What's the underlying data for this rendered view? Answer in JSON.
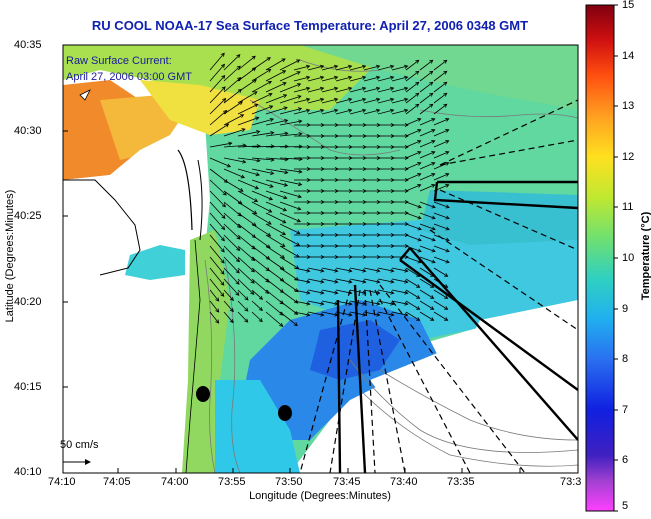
{
  "title": "RU COOL  NOAA-17  Sea Surface Temperature:  April 27, 2006 0348 GMT",
  "legend": {
    "line1": "Raw Surface Current:",
    "line2": "April 27, 2006 03:00 GMT"
  },
  "scale_label": "50 cm/s",
  "axes": {
    "xlabel": "Longitude (Degrees:Minutes)",
    "ylabel": "Latitude (Degrees:Minutes)",
    "x_ticks": [
      "74:10",
      "74:05",
      "74:00",
      "73:55",
      "73:50",
      "73:45",
      "73:40",
      "73:35",
      "73:3"
    ],
    "y_ticks": [
      "40:35",
      "40:30",
      "40:25",
      "40:20",
      "40:15",
      "40:10"
    ]
  },
  "colorbar": {
    "label": "Temperature (°C)",
    "ticks": [
      "15",
      "14",
      "13",
      "12",
      "11",
      "10",
      "9",
      "8",
      "7",
      "6",
      "5"
    ],
    "range": [
      5,
      15
    ]
  },
  "colors": {
    "warm": "#f08a2a",
    "mid": "#b8e040",
    "cool": "#38c8e0",
    "cold": "#2a70e8",
    "land": "#ffffff",
    "title": "#1020b0"
  }
}
